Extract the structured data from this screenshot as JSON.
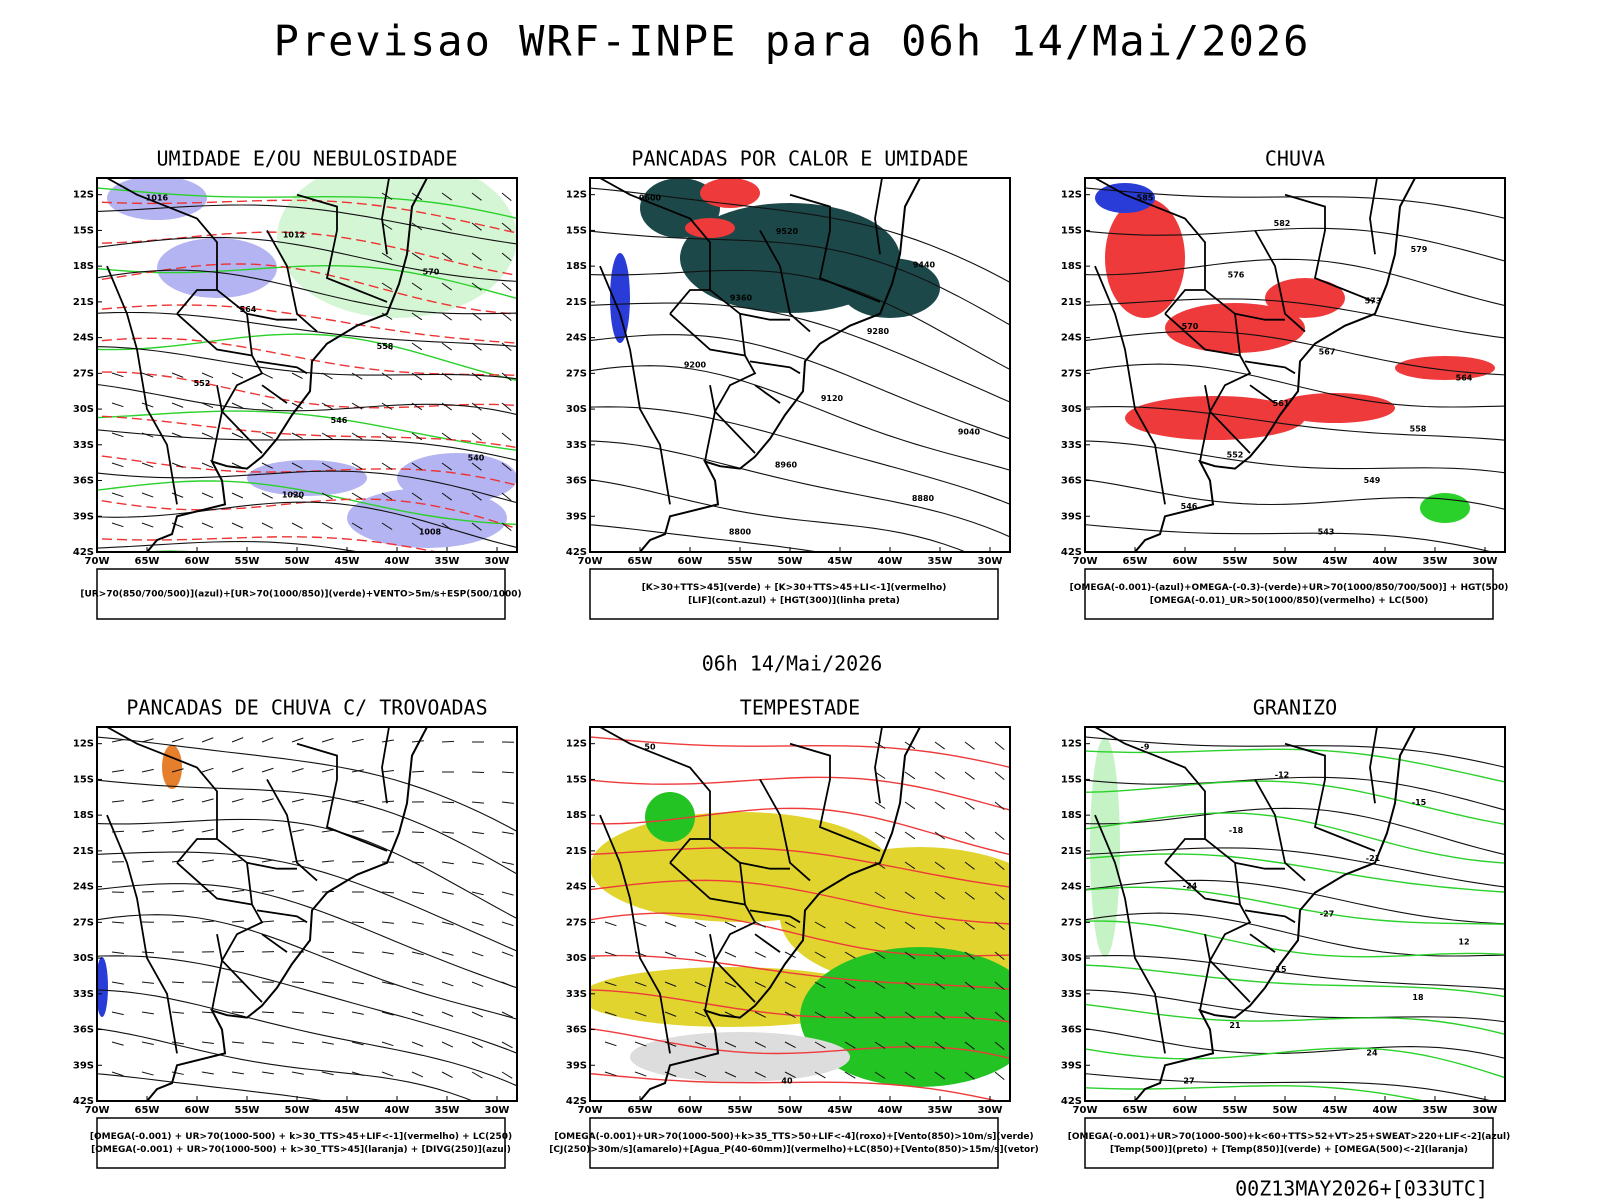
{
  "title": "Previsao WRF-INPE  para 06h 14/Mai/2026",
  "subtitle": "06h 14/Mai/2026",
  "footer": "00Z13MAY2026+[033UTC]",
  "axes": {
    "lat": [
      "12S",
      "15S",
      "18S",
      "21S",
      "24S",
      "27S",
      "30S",
      "33S",
      "36S",
      "39S",
      "42S"
    ],
    "lon": [
      "70W",
      "65W",
      "60W",
      "55W",
      "50W",
      "45W",
      "40W",
      "35W",
      "30W"
    ]
  },
  "panels": [
    {
      "title": "UMIDADE E/OU NEBULOSIDADE",
      "legend": [
        "[UR>70(850/700/500)](azul)+[UR>70(1000/850)](verde)+VENTO>5m/s+ESP(500/1000)"
      ],
      "contour_labels": [
        "1016",
        "1012",
        "570",
        "564",
        "558",
        "552",
        "546",
        "540",
        "1020",
        "1008"
      ]
    },
    {
      "title": "PANCADAS POR CALOR E UMIDADE",
      "legend": [
        "[K>30+TTS>45](verde) + [K>30+TTS>45+LI<-1](vermelho)",
        "[LIF](cont.azul) + [HGT(300)](linha preta)"
      ],
      "contour_labels": [
        "9600",
        "9520",
        "9440",
        "9360",
        "9280",
        "9200",
        "9120",
        "9040",
        "8960",
        "8880",
        "8800"
      ]
    },
    {
      "title": "CHUVA",
      "legend": [
        "[OMEGA(-0.001)-(azul)+OMEGA-(-0.3)-(verde)+UR>70(1000/850/700/500)] + HGT(500)",
        "[OMEGA(-0.01)_UR>50(1000/850)(vermelho) + LC(500)"
      ],
      "contour_labels": [
        "585",
        "582",
        "579",
        "576",
        "573",
        "570",
        "567",
        "564",
        "561",
        "558",
        "552",
        "549",
        "546",
        "543"
      ]
    },
    {
      "title": "PANCADAS DE CHUVA C/ TROVOADAS",
      "legend": [
        "[OMEGA(-0.001) + UR>70(1000-500) + k>30_TTS>45+LIF<-1](vermelho) + LC(250)",
        "[OMEGA(-0.001) + UR>70(1000-500) + k>30_TTS>45](laranja) + [DIVG(250)](azul)"
      ],
      "contour_labels": []
    },
    {
      "title": "TEMPESTADE",
      "legend": [
        "[OMEGA(-0.001)+UR>70(1000-500)+k>35_TTS>50+LIF<-4](roxo)+[Vento(850)>10m/s](verde)",
        "[CJ(250)>30m/s](amarelo)+[Agua_P(40-60mm)](vermelho)+LC(850)+[Vento(850)>15m/s](vetor)"
      ],
      "contour_labels": [
        "50",
        "40"
      ]
    },
    {
      "title": "GRANIZO",
      "legend": [
        "[OMEGA(-0.001)+UR>70(1000-500)+k<60+TTS>52+VT>25+SWEAT>220+LIF<-2](azul)",
        "[Temp(500)](preto) + [Temp(850)](verde) + [OMEGA(500)<-2](laranja)"
      ],
      "contour_labels": [
        "-9",
        "-12",
        "-15",
        "-18",
        "-21",
        "-24",
        "-27",
        "12",
        "15",
        "18",
        "21",
        "24",
        "27"
      ]
    }
  ]
}
